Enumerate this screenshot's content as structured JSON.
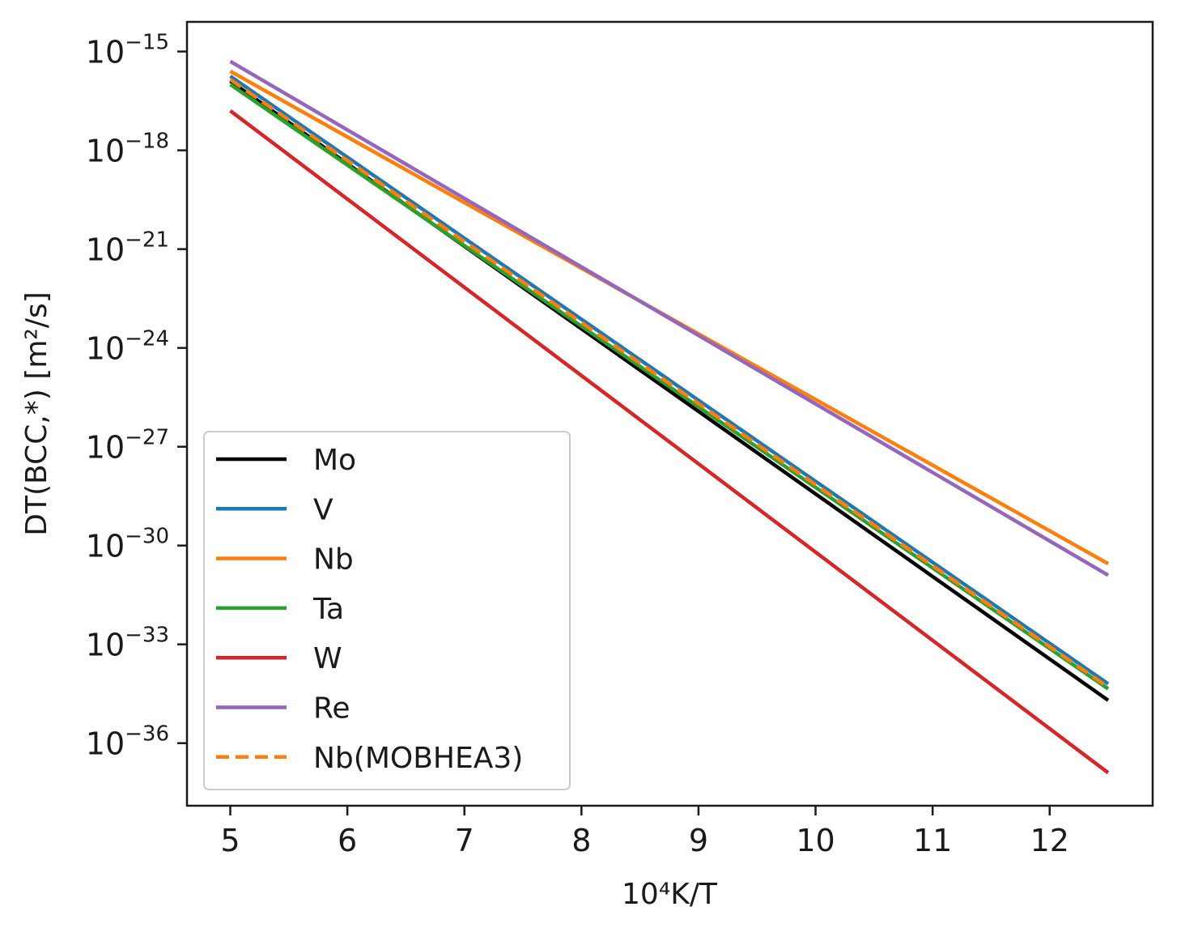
{
  "chart_data": {
    "type": "line",
    "title": "",
    "xlabel": "10⁴K/T",
    "ylabel": "DT(BCC,*) [m²/s]",
    "xlim": [
      4.63,
      12.88
    ],
    "ylim_log10": [
      -37.9,
      -14.1
    ],
    "yscale": "log",
    "grid": false,
    "legend_position": "lower-left",
    "x_ticks": [
      5,
      6,
      7,
      8,
      9,
      10,
      11,
      12
    ],
    "x_tick_labels": [
      "5",
      "6",
      "7",
      "8",
      "9",
      "10",
      "11",
      "12"
    ],
    "y_ticks_log10": [
      -15,
      -18,
      -21,
      -24,
      -27,
      -30,
      -33,
      -36
    ],
    "y_tick_base": "10",
    "y_tick_exponents": [
      "−15",
      "−18",
      "−21",
      "−24",
      "−27",
      "−30",
      "−33",
      "−36"
    ],
    "series": [
      {
        "name": "Mo",
        "color": "#000000",
        "dash": "solid",
        "x": [
          5,
          12.5
        ],
        "log10_values": [
          -15.9,
          -34.7
        ]
      },
      {
        "name": "V",
        "color": "#1f77b4",
        "dash": "solid",
        "x": [
          5,
          12.5
        ],
        "log10_values": [
          -15.75,
          -34.2
        ]
      },
      {
        "name": "Nb",
        "color": "#ff7f0e",
        "dash": "solid",
        "x": [
          5,
          12.5
        ],
        "log10_values": [
          -15.6,
          -30.55
        ]
      },
      {
        "name": "Ta",
        "color": "#2ca02c",
        "dash": "solid",
        "x": [
          5,
          12.5
        ],
        "log10_values": [
          -16.0,
          -34.35
        ]
      },
      {
        "name": "W",
        "color": "#d62728",
        "dash": "solid",
        "x": [
          5,
          12.5
        ],
        "log10_values": [
          -16.8,
          -36.9
        ]
      },
      {
        "name": "Re",
        "color": "#9467bd",
        "dash": "solid",
        "x": [
          5,
          12.5
        ],
        "log10_values": [
          -15.3,
          -30.9
        ]
      },
      {
        "name": "Nb(MOBHEA3)",
        "color": "#ff7f0e",
        "dash": "dashed",
        "x": [
          5,
          12.5
        ],
        "log10_values": [
          -15.85,
          -34.3
        ]
      }
    ]
  }
}
